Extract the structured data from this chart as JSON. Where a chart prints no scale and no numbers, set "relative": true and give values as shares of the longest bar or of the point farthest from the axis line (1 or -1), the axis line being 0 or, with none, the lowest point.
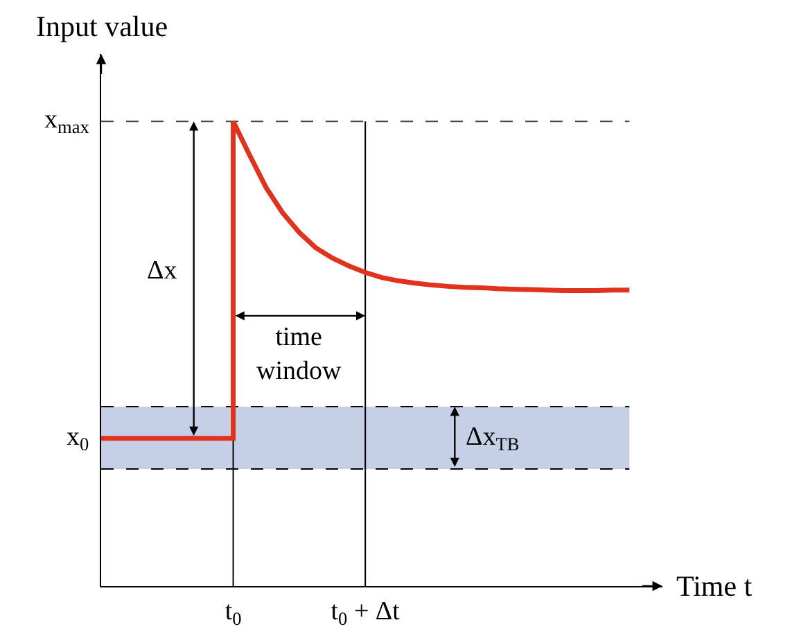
{
  "chart_data": {
    "type": "line",
    "relative": true,
    "xlabel": "Time t",
    "ylabel": "Input value",
    "categories": [
      null,
      null,
      null,
      null,
      null,
      null,
      null,
      null,
      "t$_{0}$",
      null,
      null,
      null,
      null,
      null,
      null,
      null,
      "t$_{0}$ + Δt",
      null,
      null,
      null,
      null,
      null,
      null,
      null,
      null,
      null,
      null,
      null,
      null,
      null,
      null,
      null,
      null
    ],
    "series": [
      {
        "type": "step",
        "color": "#e2311d",
        "values": [
          0.318,
          0.318,
          0.318,
          0.318,
          0.318,
          0.318,
          0.318,
          0.318,
          1,
          null,
          null,
          null,
          null,
          null,
          null,
          null,
          null,
          null,
          null,
          null,
          null,
          null,
          null,
          null,
          null,
          null,
          null,
          null,
          null,
          null,
          null,
          null,
          null
        ]
      },
      {
        "color": "#e2311d",
        "values": [
          null,
          null,
          null,
          null,
          null,
          null,
          null,
          null,
          1,
          0.927,
          0.857,
          0.803,
          0.761,
          0.728,
          0.706,
          0.689,
          0.675,
          0.664,
          0.657,
          0.652,
          0.648,
          0.645,
          0.643,
          0.642,
          0.64,
          0.639,
          0.638,
          0.637,
          0.636,
          0.636,
          0.636,
          0.637,
          0.637
        ]
      }
    ],
    "grid": "x",
    "ref_lines": [
      {
        "axis": "y",
        "value": 1,
        "label": "x$_{max}$",
        "line_style": "dashed",
        "color": "#444444"
      },
      {
        "axis": "y",
        "value": 0.386,
        "line_style": "dashed",
        "color": "#000000"
      },
      {
        "axis": "y",
        "value": 0.252,
        "line_style": "dashed",
        "color": "#000000"
      }
    ],
    "bands": [
      {
        "axis": "y",
        "from": 0.252,
        "to": 0.386,
        "label": "x$_{0}$",
        "color": "#c5d0e6"
      }
    ],
    "annotations": [
      "Δx",
      "time\nwindow",
      "Δx$_{TB}$"
    ]
  }
}
